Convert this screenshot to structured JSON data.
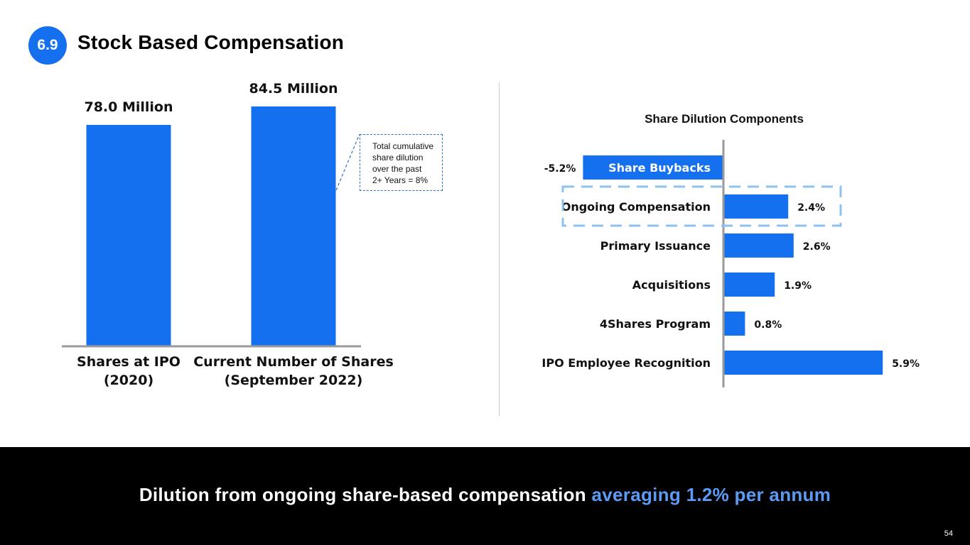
{
  "slide": {
    "section_number": "6.9",
    "title": "Stock Based Compensation",
    "page_number": "54"
  },
  "callout": {
    "text_lines": [
      "Total cumulative",
      "share dilution",
      "over the past",
      "2+ Years = 8%"
    ]
  },
  "footer": {
    "text_main": "Dilution from ongoing share-based compensation ",
    "text_highlight": "averaging 1.2% per annum"
  },
  "colors": {
    "bar": "#1570ef",
    "axis": "#9a9a9a",
    "highlight_box": "#8cc1f0",
    "footer_highlight": "#5c9bf5"
  },
  "chart_data": [
    {
      "type": "bar",
      "title": "",
      "categories": [
        [
          "Shares at IPO",
          "(2020)"
        ],
        [
          "Current Number of Shares",
          "(September 2022)"
        ]
      ],
      "values": [
        78.0,
        84.5
      ],
      "data_labels": [
        "78.0 Million",
        "84.5 Million"
      ],
      "unit": "Million shares",
      "ylim": [
        0,
        87
      ],
      "grid": false
    },
    {
      "type": "bar",
      "orientation": "horizontal",
      "title": "Share Dilution Components",
      "categories": [
        "Share Buybacks",
        "Ongoing Compensation",
        "Primary Issuance",
        "Acquisitions",
        "4Shares Program",
        "IPO Employee Recognition"
      ],
      "values": [
        -5.2,
        2.4,
        2.6,
        1.9,
        0.8,
        5.9
      ],
      "data_labels": [
        "-5.2%",
        "2.4%",
        "2.6%",
        "1.9%",
        "0.8%",
        "5.9%"
      ],
      "highlighted_category": "Ongoing Compensation",
      "unit": "%",
      "xlim": [
        -5.2,
        5.9
      ],
      "grid": false
    }
  ]
}
